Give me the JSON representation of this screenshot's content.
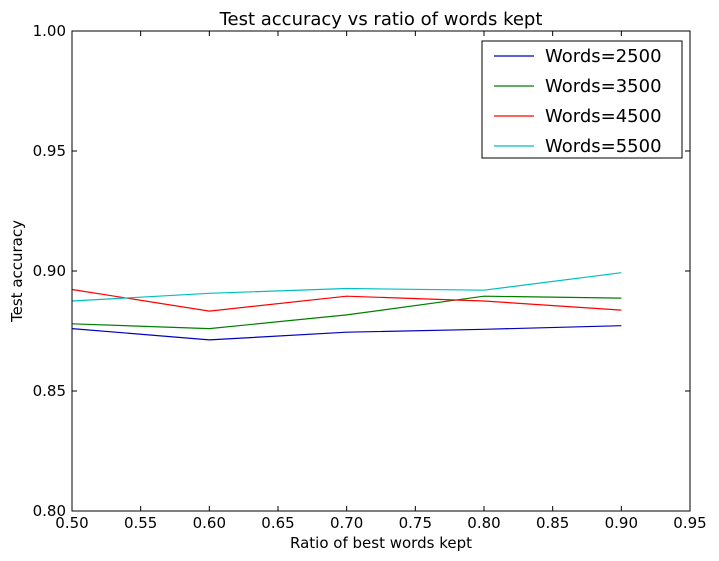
{
  "chart_data": {
    "type": "line",
    "title": "Test accuracy vs ratio of words kept",
    "xlabel": "Ratio of best words kept",
    "ylabel": "Test accuracy",
    "xlim": [
      0.5,
      0.95
    ],
    "ylim": [
      0.8,
      1.0
    ],
    "xticks": [
      "0.50",
      "0.55",
      "0.60",
      "0.65",
      "0.70",
      "0.75",
      "0.80",
      "0.85",
      "0.90",
      "0.95"
    ],
    "yticks": [
      "0.80",
      "0.85",
      "0.90",
      "0.95",
      "1.00"
    ],
    "grid": false,
    "legend_position": "top-right",
    "x": [
      0.5,
      0.6,
      0.7,
      0.8,
      0.9
    ],
    "series": [
      {
        "name": "Words=2500",
        "color": "#0000bf",
        "values": [
          0.876,
          0.8713,
          0.8745,
          0.8757,
          0.8772
        ]
      },
      {
        "name": "Words=3500",
        "color": "#007f00",
        "values": [
          0.878,
          0.876,
          0.8817,
          0.8895,
          0.8887
        ]
      },
      {
        "name": "Words=4500",
        "color": "#ff0000",
        "values": [
          0.8923,
          0.8833,
          0.8895,
          0.8875,
          0.8837
        ]
      },
      {
        "name": "Words=5500",
        "color": "#00bfbf",
        "values": [
          0.8875,
          0.8907,
          0.8927,
          0.892,
          0.8993
        ]
      }
    ]
  }
}
